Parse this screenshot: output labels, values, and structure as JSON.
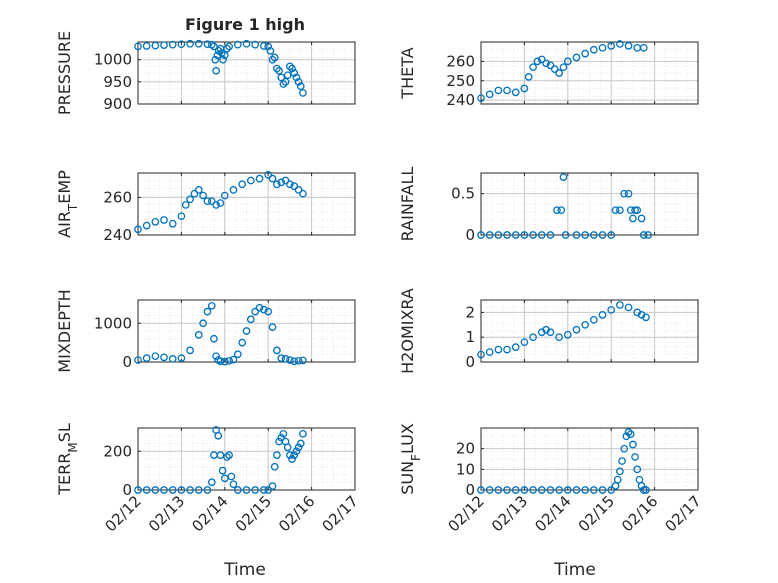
{
  "figure": {
    "title": "Figure 1 high",
    "x_tick_labels": [
      "02/12",
      "02/13",
      "02/14",
      "02/15",
      "02/16",
      "02/17"
    ],
    "xlabel": "Time"
  },
  "colors": {
    "marker": "#0072BD",
    "axes": "#262626",
    "grid": "#c8c8c8",
    "minor_grid": "#e2e2e2"
  },
  "chart_data": [
    {
      "type": "scatter",
      "ylabel": "PRESSURE",
      "xlim": [
        0,
        5
      ],
      "ylim": [
        900,
        1040
      ],
      "yticks": [
        900,
        950,
        1000
      ],
      "points": [
        [
          0,
          1030
        ],
        [
          0.2,
          1031
        ],
        [
          0.4,
          1032
        ],
        [
          0.6,
          1033
        ],
        [
          0.8,
          1034
        ],
        [
          1.0,
          1035
        ],
        [
          1.2,
          1036
        ],
        [
          1.4,
          1036
        ],
        [
          1.6,
          1035
        ],
        [
          1.7,
          1034
        ],
        [
          1.75,
          1030
        ],
        [
          1.78,
          1000
        ],
        [
          1.8,
          975
        ],
        [
          1.83,
          1010
        ],
        [
          1.86,
          1020
        ],
        [
          1.9,
          1025
        ],
        [
          1.93,
          1015
        ],
        [
          1.96,
          1000
        ],
        [
          2.0,
          1010
        ],
        [
          2.05,
          1025
        ],
        [
          2.1,
          1030
        ],
        [
          2.3,
          1034
        ],
        [
          2.5,
          1036
        ],
        [
          2.7,
          1034
        ],
        [
          2.9,
          1031
        ],
        [
          3.0,
          1030
        ],
        [
          3.05,
          1020
        ],
        [
          3.1,
          1000
        ],
        [
          3.15,
          1005
        ],
        [
          3.2,
          980
        ],
        [
          3.25,
          975
        ],
        [
          3.3,
          960
        ],
        [
          3.35,
          945
        ],
        [
          3.4,
          950
        ],
        [
          3.45,
          965
        ],
        [
          3.5,
          985
        ],
        [
          3.55,
          980
        ],
        [
          3.6,
          970
        ],
        [
          3.65,
          960
        ],
        [
          3.7,
          950
        ],
        [
          3.75,
          940
        ],
        [
          3.8,
          925
        ]
      ]
    },
    {
      "type": "scatter",
      "ylabel": "THETA",
      "xlim": [
        0,
        5
      ],
      "ylim": [
        238,
        270
      ],
      "yticks": [
        240,
        250,
        260
      ],
      "points": [
        [
          0,
          241
        ],
        [
          0.2,
          243
        ],
        [
          0.4,
          245
        ],
        [
          0.6,
          245
        ],
        [
          0.8,
          244
        ],
        [
          1.0,
          246
        ],
        [
          1.1,
          252
        ],
        [
          1.2,
          257
        ],
        [
          1.3,
          260
        ],
        [
          1.4,
          261
        ],
        [
          1.5,
          259
        ],
        [
          1.6,
          258
        ],
        [
          1.7,
          256
        ],
        [
          1.8,
          254
        ],
        [
          1.9,
          257
        ],
        [
          2.0,
          260
        ],
        [
          2.2,
          262
        ],
        [
          2.4,
          264
        ],
        [
          2.6,
          266
        ],
        [
          2.8,
          267
        ],
        [
          3.0,
          268
        ],
        [
          3.2,
          269
        ],
        [
          3.4,
          268
        ],
        [
          3.6,
          267
        ],
        [
          3.75,
          267
        ]
      ]
    },
    {
      "type": "scatter",
      "ylabel": "AIR_TEMP",
      "xlim": [
        0,
        5
      ],
      "ylim": [
        240,
        273
      ],
      "yticks": [
        240,
        260
      ],
      "points": [
        [
          0,
          243
        ],
        [
          0.2,
          245
        ],
        [
          0.4,
          247
        ],
        [
          0.6,
          248
        ],
        [
          0.8,
          246
        ],
        [
          1.0,
          250
        ],
        [
          1.1,
          256
        ],
        [
          1.2,
          259
        ],
        [
          1.3,
          262
        ],
        [
          1.4,
          264
        ],
        [
          1.5,
          261
        ],
        [
          1.6,
          258
        ],
        [
          1.7,
          258
        ],
        [
          1.8,
          256
        ],
        [
          1.9,
          257
        ],
        [
          2.0,
          261
        ],
        [
          2.2,
          264
        ],
        [
          2.4,
          267
        ],
        [
          2.6,
          269
        ],
        [
          2.8,
          270
        ],
        [
          3.0,
          272
        ],
        [
          3.1,
          270
        ],
        [
          3.2,
          267
        ],
        [
          3.3,
          268
        ],
        [
          3.4,
          269
        ],
        [
          3.5,
          267
        ],
        [
          3.6,
          266
        ],
        [
          3.7,
          264
        ],
        [
          3.8,
          262
        ]
      ]
    },
    {
      "type": "scatter",
      "ylabel": "RAINFALL",
      "xlim": [
        0,
        5
      ],
      "ylim": [
        0,
        0.75
      ],
      "yticks": [
        0,
        0.5
      ],
      "points": [
        [
          0,
          0
        ],
        [
          0.2,
          0
        ],
        [
          0.4,
          0
        ],
        [
          0.6,
          0
        ],
        [
          0.8,
          0
        ],
        [
          1.0,
          0
        ],
        [
          1.2,
          0
        ],
        [
          1.4,
          0
        ],
        [
          1.6,
          0
        ],
        [
          1.75,
          0.3
        ],
        [
          1.85,
          0.3
        ],
        [
          1.9,
          0.7
        ],
        [
          1.95,
          0
        ],
        [
          2.2,
          0
        ],
        [
          2.4,
          0
        ],
        [
          2.6,
          0
        ],
        [
          2.8,
          0
        ],
        [
          3.0,
          0
        ],
        [
          3.1,
          0.3
        ],
        [
          3.2,
          0.3
        ],
        [
          3.3,
          0.5
        ],
        [
          3.4,
          0.5
        ],
        [
          3.45,
          0.3
        ],
        [
          3.5,
          0.2
        ],
        [
          3.55,
          0.3
        ],
        [
          3.6,
          0.3
        ],
        [
          3.7,
          0.2
        ],
        [
          3.75,
          0
        ],
        [
          3.85,
          0
        ]
      ]
    },
    {
      "type": "scatter",
      "ylabel": "MIXDEPTH",
      "xlim": [
        0,
        5
      ],
      "ylim": [
        0,
        1600
      ],
      "yticks": [
        0,
        1000
      ],
      "points": [
        [
          0,
          50
        ],
        [
          0.2,
          100
        ],
        [
          0.4,
          150
        ],
        [
          0.6,
          120
        ],
        [
          0.8,
          80
        ],
        [
          1.0,
          100
        ],
        [
          1.2,
          300
        ],
        [
          1.4,
          700
        ],
        [
          1.5,
          1000
        ],
        [
          1.6,
          1300
        ],
        [
          1.7,
          1450
        ],
        [
          1.75,
          600
        ],
        [
          1.8,
          150
        ],
        [
          1.85,
          50
        ],
        [
          1.9,
          20
        ],
        [
          2.0,
          10
        ],
        [
          2.1,
          30
        ],
        [
          2.2,
          60
        ],
        [
          2.3,
          200
        ],
        [
          2.4,
          500
        ],
        [
          2.5,
          800
        ],
        [
          2.6,
          1100
        ],
        [
          2.7,
          1300
        ],
        [
          2.8,
          1400
        ],
        [
          2.9,
          1350
        ],
        [
          3.0,
          1300
        ],
        [
          3.1,
          900
        ],
        [
          3.2,
          300
        ],
        [
          3.3,
          100
        ],
        [
          3.4,
          80
        ],
        [
          3.5,
          50
        ],
        [
          3.6,
          20
        ],
        [
          3.7,
          30
        ],
        [
          3.8,
          40
        ]
      ]
    },
    {
      "type": "scatter",
      "ylabel": "H2OMIXRA",
      "xlim": [
        0,
        5
      ],
      "ylim": [
        0,
        2.5
      ],
      "yticks": [
        0,
        1,
        2
      ],
      "points": [
        [
          0,
          0.3
        ],
        [
          0.2,
          0.4
        ],
        [
          0.4,
          0.5
        ],
        [
          0.6,
          0.5
        ],
        [
          0.8,
          0.6
        ],
        [
          1.0,
          0.8
        ],
        [
          1.2,
          1.0
        ],
        [
          1.4,
          1.2
        ],
        [
          1.5,
          1.3
        ],
        [
          1.6,
          1.2
        ],
        [
          1.8,
          1.0
        ],
        [
          2.0,
          1.1
        ],
        [
          2.2,
          1.3
        ],
        [
          2.4,
          1.5
        ],
        [
          2.6,
          1.7
        ],
        [
          2.8,
          1.9
        ],
        [
          3.0,
          2.1
        ],
        [
          3.2,
          2.3
        ],
        [
          3.4,
          2.2
        ],
        [
          3.6,
          2.0
        ],
        [
          3.7,
          1.9
        ],
        [
          3.8,
          1.8
        ]
      ]
    },
    {
      "type": "scatter",
      "ylabel": "TERR_MSL",
      "xlim": [
        0,
        5
      ],
      "ylim": [
        0,
        320
      ],
      "yticks": [
        0,
        200
      ],
      "points": [
        [
          0,
          0
        ],
        [
          0.2,
          0
        ],
        [
          0.4,
          0
        ],
        [
          0.6,
          0
        ],
        [
          0.8,
          0
        ],
        [
          1.0,
          0
        ],
        [
          1.2,
          0
        ],
        [
          1.4,
          0
        ],
        [
          1.6,
          0
        ],
        [
          1.7,
          40
        ],
        [
          1.75,
          180
        ],
        [
          1.8,
          310
        ],
        [
          1.85,
          280
        ],
        [
          1.9,
          180
        ],
        [
          1.95,
          100
        ],
        [
          2.0,
          60
        ],
        [
          2.05,
          170
        ],
        [
          2.1,
          180
        ],
        [
          2.15,
          70
        ],
        [
          2.2,
          30
        ],
        [
          2.3,
          0
        ],
        [
          2.5,
          0
        ],
        [
          2.7,
          0
        ],
        [
          2.9,
          0
        ],
        [
          3.0,
          0
        ],
        [
          3.1,
          20
        ],
        [
          3.15,
          120
        ],
        [
          3.2,
          180
        ],
        [
          3.25,
          250
        ],
        [
          3.3,
          270
        ],
        [
          3.35,
          290
        ],
        [
          3.4,
          250
        ],
        [
          3.45,
          220
        ],
        [
          3.5,
          180
        ],
        [
          3.55,
          160
        ],
        [
          3.6,
          180
        ],
        [
          3.65,
          200
        ],
        [
          3.7,
          220
        ],
        [
          3.75,
          240
        ],
        [
          3.8,
          290
        ]
      ]
    },
    {
      "type": "scatter",
      "ylabel": "SUN_FLUX",
      "xlim": [
        0,
        5
      ],
      "ylim": [
        0,
        30
      ],
      "yticks": [
        0,
        10,
        20
      ],
      "points": [
        [
          0,
          0
        ],
        [
          0.2,
          0
        ],
        [
          0.4,
          0
        ],
        [
          0.6,
          0
        ],
        [
          0.8,
          0
        ],
        [
          1.0,
          0
        ],
        [
          1.2,
          0
        ],
        [
          1.4,
          0
        ],
        [
          1.6,
          0
        ],
        [
          1.8,
          0
        ],
        [
          2.0,
          0
        ],
        [
          2.2,
          0
        ],
        [
          2.4,
          0
        ],
        [
          2.6,
          0
        ],
        [
          2.8,
          0
        ],
        [
          3.0,
          0
        ],
        [
          3.1,
          2
        ],
        [
          3.15,
          5
        ],
        [
          3.2,
          9
        ],
        [
          3.25,
          14
        ],
        [
          3.3,
          20
        ],
        [
          3.35,
          26
        ],
        [
          3.4,
          28
        ],
        [
          3.45,
          27
        ],
        [
          3.5,
          22
        ],
        [
          3.55,
          16
        ],
        [
          3.6,
          10
        ],
        [
          3.65,
          5
        ],
        [
          3.7,
          2
        ],
        [
          3.75,
          0
        ],
        [
          3.8,
          0
        ]
      ]
    }
  ]
}
